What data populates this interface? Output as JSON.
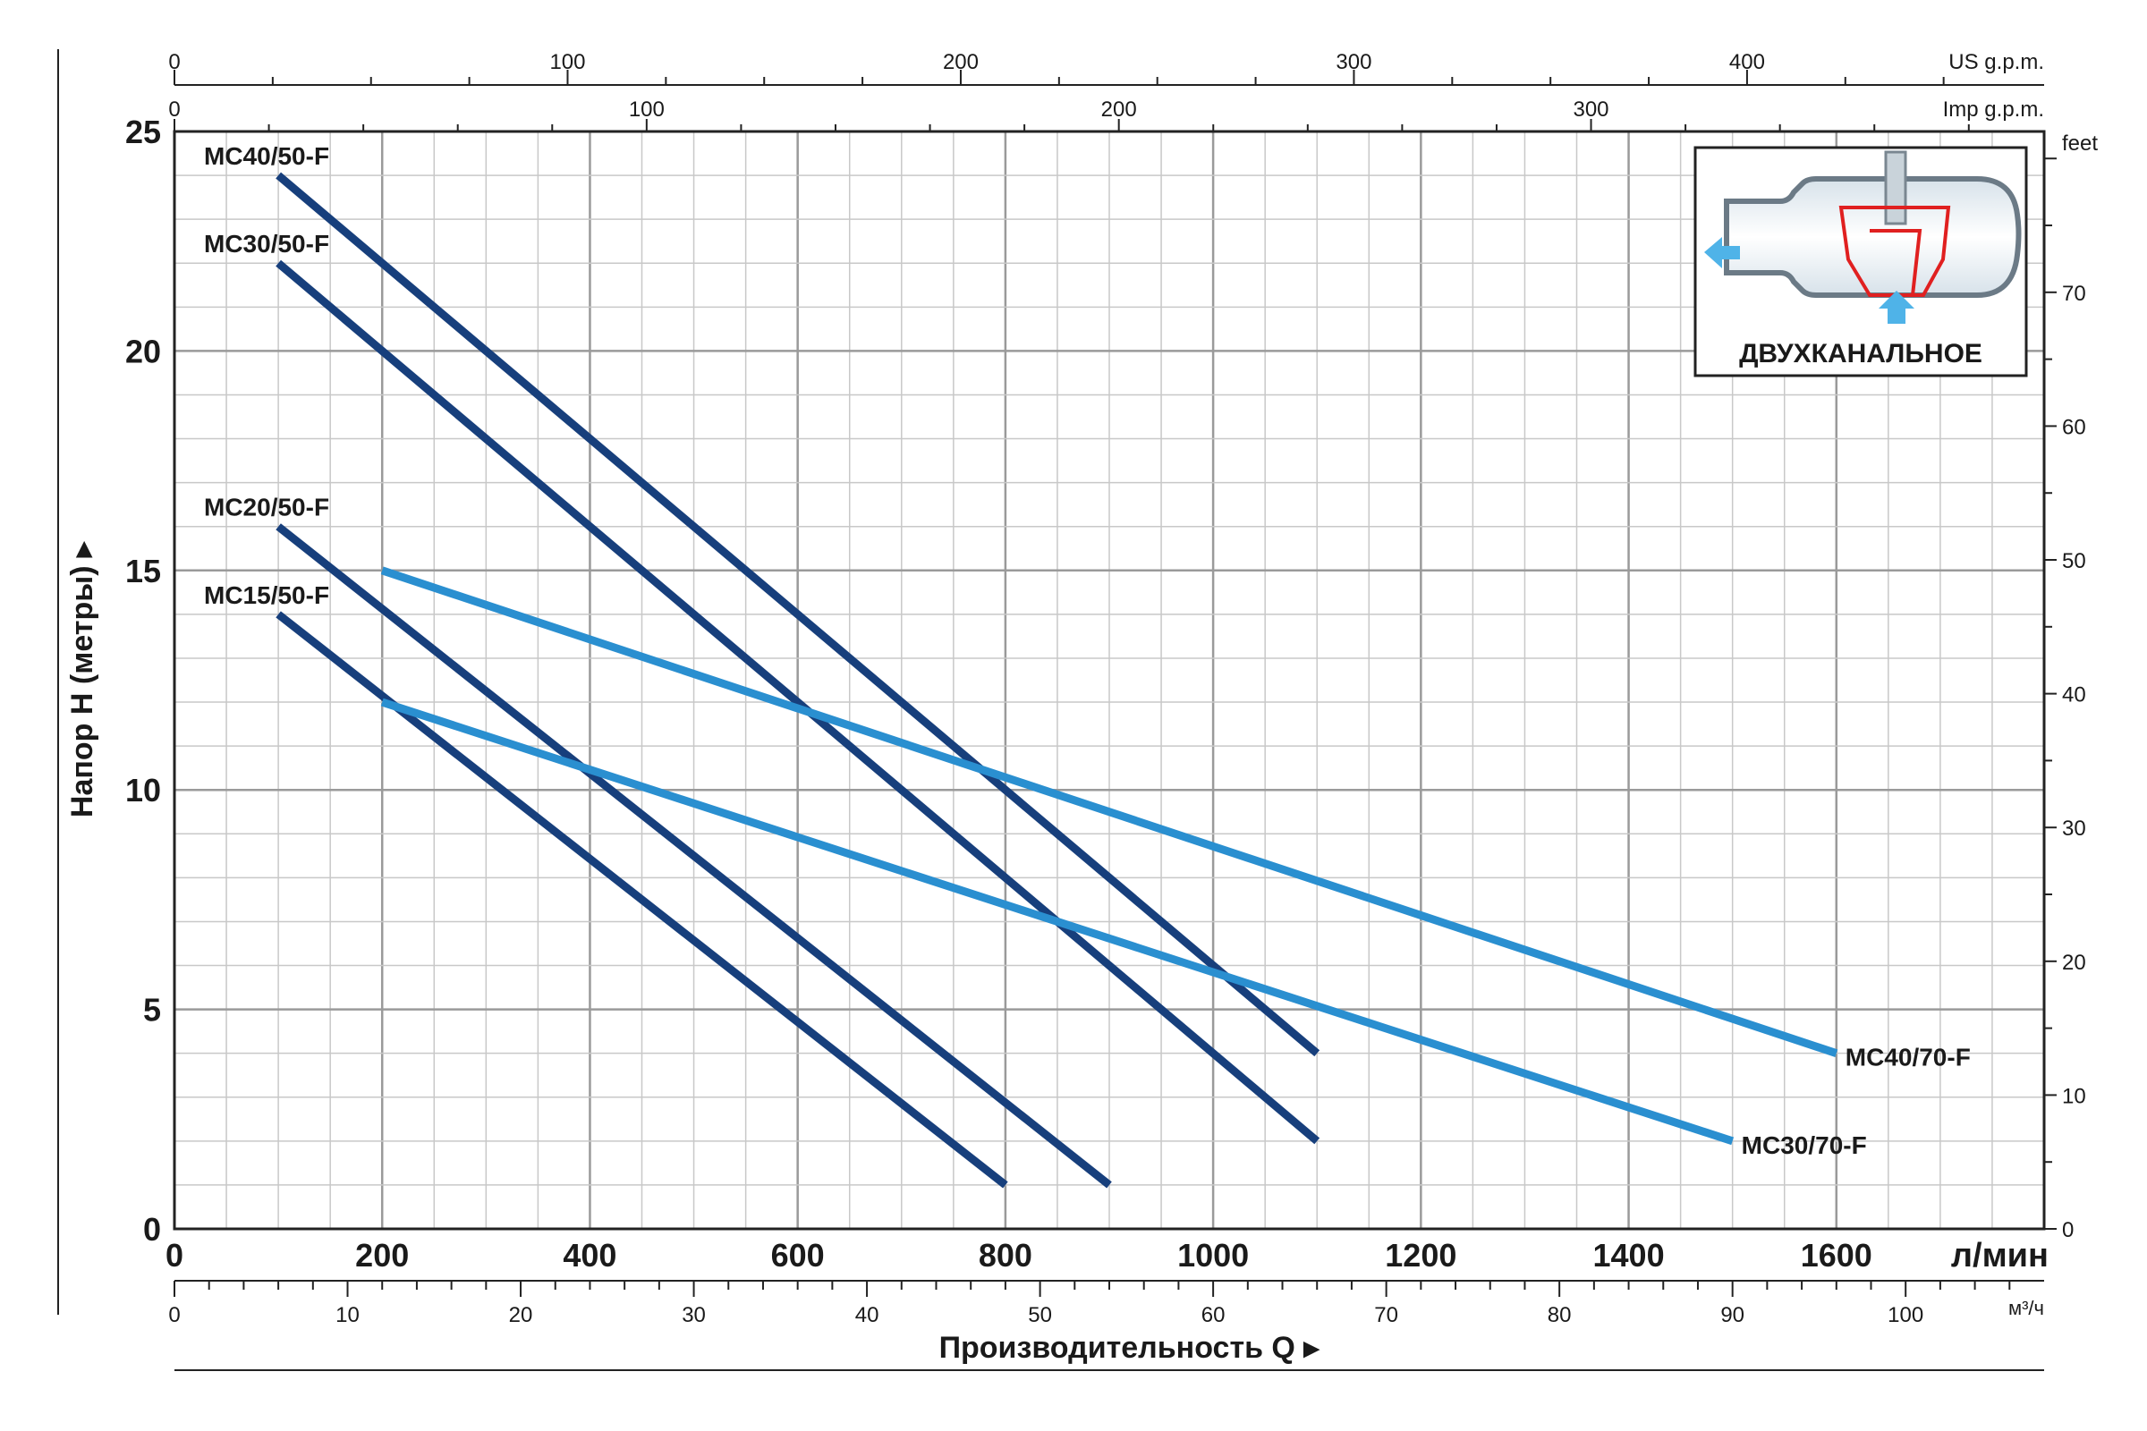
{
  "chart_data": {
    "type": "line",
    "title": "",
    "xlabel": "Производительность Q",
    "ylabel": "Напор H (метры)",
    "xunit": "л/мин",
    "xlim": [
      0,
      1800
    ],
    "ylim": [
      0,
      25
    ],
    "grid": true,
    "x_ticks": [
      0,
      200,
      400,
      600,
      800,
      1000,
      1200,
      1400,
      1600
    ],
    "y_ticks": [
      0,
      5,
      10,
      15,
      20,
      25
    ],
    "secondary_axes": {
      "us_gpm": {
        "label": "US g.p.m.",
        "ticks": [
          0,
          100,
          200,
          300,
          400
        ]
      },
      "imp_gpm": {
        "label": "Imp g.p.m.",
        "ticks": [
          0,
          100,
          200,
          300
        ]
      },
      "m3h": {
        "label": "м³/ч",
        "ticks": [
          0,
          10,
          20,
          30,
          40,
          50,
          60,
          70,
          80,
          90,
          100
        ]
      },
      "feet": {
        "label": "feet",
        "ticks": [
          0,
          10,
          20,
          30,
          40,
          50,
          60,
          70
        ]
      }
    },
    "series": [
      {
        "name": "MC40/50-F",
        "color": "#173f7c",
        "x": [
          100,
          1100
        ],
        "y": [
          24,
          4
        ]
      },
      {
        "name": "MC30/50-F",
        "color": "#173f7c",
        "x": [
          100,
          1100
        ],
        "y": [
          22,
          2
        ]
      },
      {
        "name": "MC20/50-F",
        "color": "#173f7c",
        "x": [
          100,
          900
        ],
        "y": [
          16,
          1
        ]
      },
      {
        "name": "MC15/50-F",
        "color": "#173f7c",
        "x": [
          100,
          800
        ],
        "y": [
          14,
          1
        ]
      },
      {
        "name": "MC40/70-F",
        "color": "#2a8fd0",
        "x": [
          200,
          1600
        ],
        "y": [
          15,
          4
        ]
      },
      {
        "name": "MC30/70-F",
        "color": "#2a8fd0",
        "x": [
          200,
          1500
        ],
        "y": [
          12,
          2
        ]
      }
    ]
  },
  "inset": {
    "label": "ДВУХКАНАЛЬНОЕ",
    "arrow_color": "#4fb3e8",
    "impeller_color": "#e02020"
  }
}
